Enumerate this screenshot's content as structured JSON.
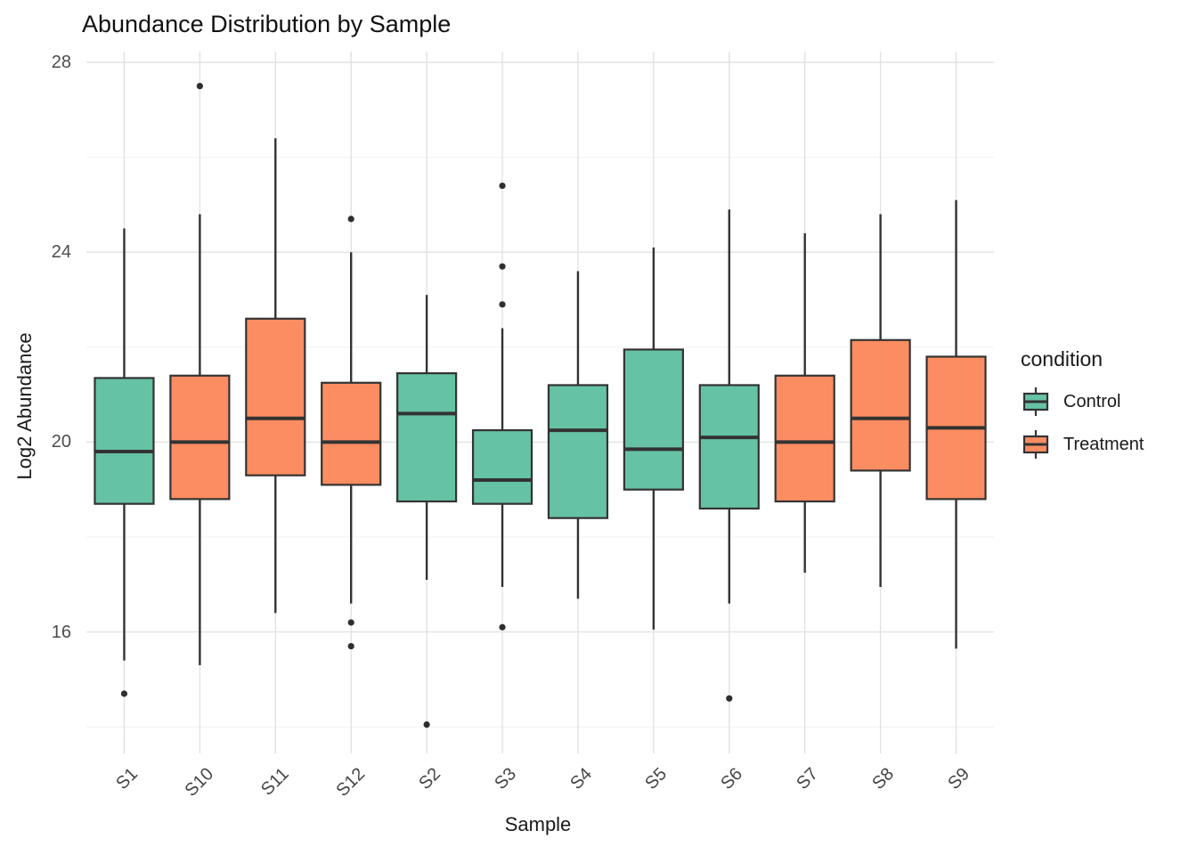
{
  "chart_data": {
    "type": "boxplot",
    "title": "Abundance Distribution by Sample",
    "xlabel": "Sample",
    "ylabel": "Log2 Abundance",
    "y_ticks": [
      16,
      20,
      24,
      28
    ],
    "y_minor_ticks": [
      14,
      18,
      22,
      26
    ],
    "ylim": [
      13.4,
      28.2
    ],
    "grid": true,
    "legend_position": "right",
    "legend": {
      "title": "condition",
      "entries": [
        {
          "label": "Control",
          "color": "#66C2A5"
        },
        {
          "label": "Treatment",
          "color": "#FC8D62"
        }
      ]
    },
    "categories": [
      "S1",
      "S10",
      "S11",
      "S12",
      "S2",
      "S3",
      "S4",
      "S5",
      "S6",
      "S7",
      "S8",
      "S9"
    ],
    "boxes": [
      {
        "sample": "S1",
        "condition": "Control",
        "whisker_low": 15.4,
        "q1": 18.7,
        "median": 19.8,
        "q3": 21.35,
        "whisker_high": 24.5,
        "outliers": [
          14.7
        ]
      },
      {
        "sample": "S10",
        "condition": "Treatment",
        "whisker_low": 15.3,
        "q1": 18.8,
        "median": 20.0,
        "q3": 21.4,
        "whisker_high": 24.8,
        "outliers": [
          27.5
        ]
      },
      {
        "sample": "S11",
        "condition": "Treatment",
        "whisker_low": 16.4,
        "q1": 19.3,
        "median": 20.5,
        "q3": 22.6,
        "whisker_high": 26.4,
        "outliers": []
      },
      {
        "sample": "S12",
        "condition": "Treatment",
        "whisker_low": 16.6,
        "q1": 19.1,
        "median": 20.0,
        "q3": 21.25,
        "whisker_high": 24.0,
        "outliers": [
          24.7,
          16.2,
          15.7
        ]
      },
      {
        "sample": "S2",
        "condition": "Control",
        "whisker_low": 17.1,
        "q1": 18.75,
        "median": 20.6,
        "q3": 21.45,
        "whisker_high": 23.1,
        "outliers": [
          14.05
        ]
      },
      {
        "sample": "S3",
        "condition": "Control",
        "whisker_low": 16.95,
        "q1": 18.7,
        "median": 19.2,
        "q3": 20.25,
        "whisker_high": 22.4,
        "outliers": [
          25.4,
          23.7,
          22.9,
          16.1
        ]
      },
      {
        "sample": "S4",
        "condition": "Control",
        "whisker_low": 16.7,
        "q1": 18.4,
        "median": 20.25,
        "q3": 21.2,
        "whisker_high": 23.6,
        "outliers": []
      },
      {
        "sample": "S5",
        "condition": "Control",
        "whisker_low": 16.05,
        "q1": 19.0,
        "median": 19.85,
        "q3": 21.95,
        "whisker_high": 24.1,
        "outliers": []
      },
      {
        "sample": "S6",
        "condition": "Control",
        "whisker_low": 16.6,
        "q1": 18.6,
        "median": 20.1,
        "q3": 21.2,
        "whisker_high": 24.9,
        "outliers": [
          14.6
        ]
      },
      {
        "sample": "S7",
        "condition": "Treatment",
        "whisker_low": 17.25,
        "q1": 18.75,
        "median": 20.0,
        "q3": 21.4,
        "whisker_high": 24.4,
        "outliers": []
      },
      {
        "sample": "S8",
        "condition": "Treatment",
        "whisker_low": 16.95,
        "q1": 19.4,
        "median": 20.5,
        "q3": 22.15,
        "whisker_high": 24.8,
        "outliers": []
      },
      {
        "sample": "S9",
        "condition": "Treatment",
        "whisker_low": 15.65,
        "q1": 18.8,
        "median": 20.3,
        "q3": 21.8,
        "whisker_high": 25.1,
        "outliers": []
      }
    ],
    "colors": {
      "Control": "#66C2A5",
      "Treatment": "#FC8D62",
      "box_border": "#333333",
      "median": "#333333",
      "outlier": "#2f2f2f",
      "grid_major": "#E2E2E2",
      "grid_minor": "#F2F2F2",
      "background": "#FFFFFF"
    }
  }
}
